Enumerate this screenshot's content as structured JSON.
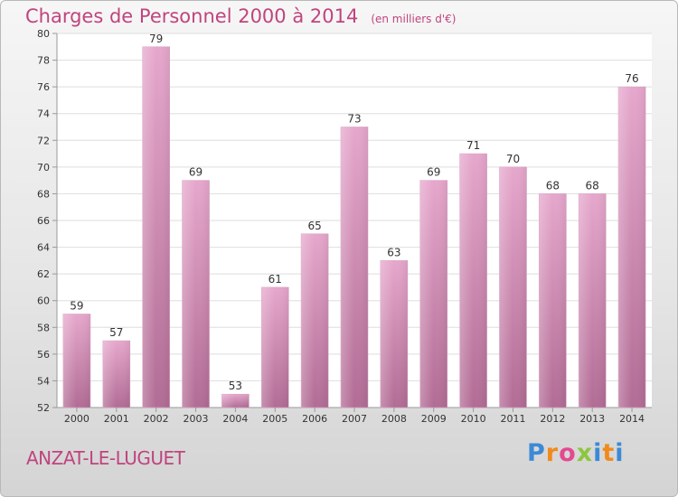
{
  "chart_data": {
    "type": "bar",
    "title": "Charges de Personnel 2000 à 2014",
    "subtitle": "(en milliers d'€)",
    "categories": [
      "2000",
      "2001",
      "2002",
      "2003",
      "2004",
      "2005",
      "2006",
      "2007",
      "2008",
      "2009",
      "2010",
      "2011",
      "2012",
      "2013",
      "2014"
    ],
    "values": [
      59,
      57,
      79,
      69,
      53,
      61,
      65,
      73,
      63,
      69,
      71,
      70,
      68,
      68,
      76
    ],
    "ylim": [
      52,
      80
    ],
    "yticks": [
      52,
      54,
      56,
      58,
      60,
      62,
      64,
      66,
      68,
      70,
      72,
      74,
      76,
      78,
      80
    ],
    "xlabel": "",
    "ylabel": "",
    "grid": true,
    "colors": {
      "bar_top": "#e6a7cc",
      "bar_bottom": "#b26c95",
      "text": "#c0447e",
      "plot_bg": "#ffffff"
    }
  },
  "footer": {
    "location": "ANZAT-LE-LUGUET",
    "brand": "Proxiti",
    "brand_letters": [
      {
        "ch": "P",
        "color": "#3b8ad6"
      },
      {
        "ch": "r",
        "color": "#f08a1c"
      },
      {
        "ch": "o",
        "color": "#e34a8f"
      },
      {
        "ch": "x",
        "color": "#8cc63f"
      },
      {
        "ch": "i",
        "color": "#3b8ad6"
      },
      {
        "ch": "t",
        "color": "#f08a1c"
      },
      {
        "ch": "i",
        "color": "#3b8ad6"
      }
    ]
  }
}
